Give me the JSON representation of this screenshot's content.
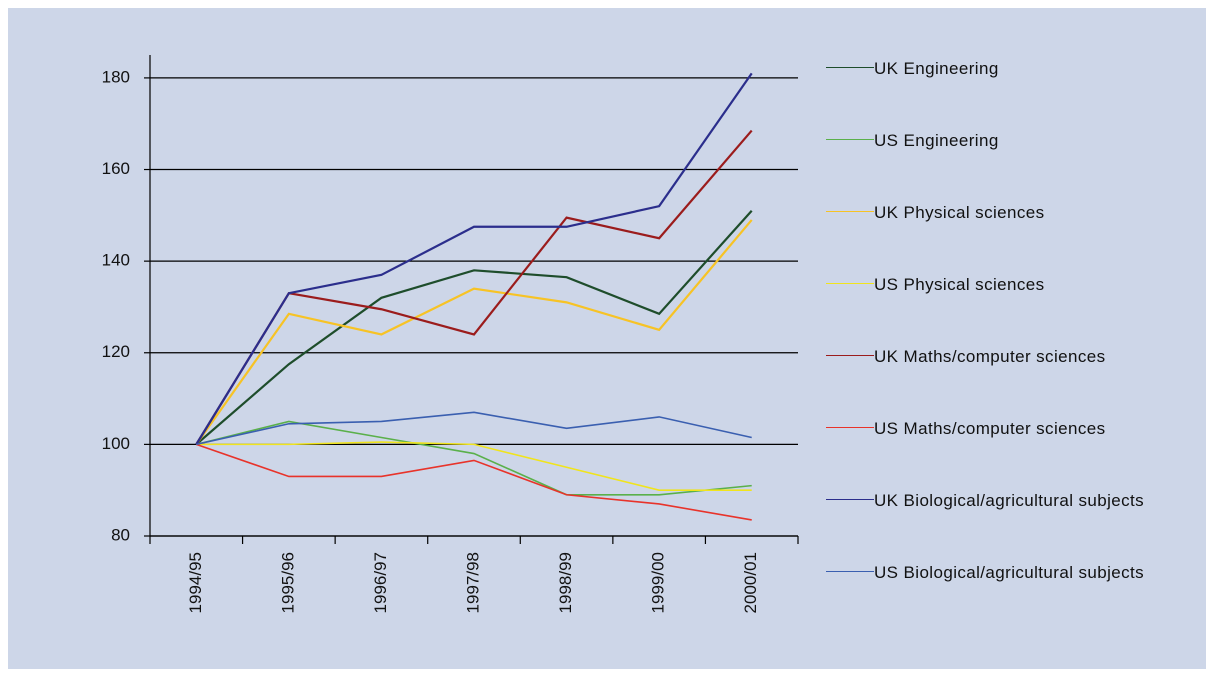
{
  "chart_data": {
    "type": "line",
    "categories": [
      "1994/95",
      "1995/96",
      "1996/97",
      "1997/98",
      "1998/99",
      "1999/00",
      "2000/01"
    ],
    "ylim": [
      80,
      185
    ],
    "yticks": [
      80,
      100,
      120,
      140,
      160,
      180
    ],
    "grid": true,
    "series": [
      {
        "name": "UK Engineering",
        "color": "#1e4d2b",
        "values": [
          100,
          117.5,
          132,
          138,
          136.5,
          128.5,
          151
        ]
      },
      {
        "name": "US Engineering",
        "color": "#5ab04a",
        "values": [
          100,
          105,
          101.5,
          98,
          89,
          89,
          91
        ]
      },
      {
        "name": "UK Physical sciences",
        "color": "#f7c325",
        "values": [
          100,
          128.5,
          124,
          134,
          131,
          125,
          149
        ]
      },
      {
        "name": "US Physical sciences",
        "color": "#f0e41c",
        "values": [
          100,
          100,
          100.5,
          100,
          95,
          90,
          90
        ]
      },
      {
        "name": "UK Maths/computer sciences",
        "color": "#9b1c1c",
        "values": [
          100,
          133,
          129.5,
          124,
          149.5,
          145,
          168.5
        ]
      },
      {
        "name": "US Maths/computer sciences",
        "color": "#e8332a",
        "values": [
          100,
          93,
          93,
          96.5,
          89,
          87,
          83.5
        ]
      },
      {
        "name": "UK Biological/agricultural subjects",
        "color": "#2b2e8c",
        "values": [
          100,
          133,
          137,
          147.5,
          147.5,
          152,
          181
        ]
      },
      {
        "name": "US Biological/agricultural subjects",
        "color": "#3a5fb0",
        "values": [
          100,
          104.5,
          105,
          107,
          103.5,
          106,
          101.5
        ]
      }
    ]
  }
}
